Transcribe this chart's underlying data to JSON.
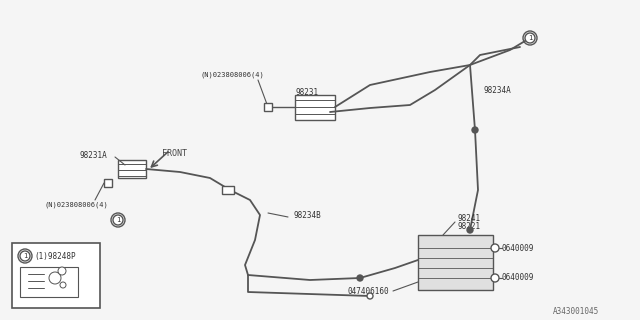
{
  "bg_color": "#f5f5f5",
  "line_color": "#555555",
  "text_color": "#333333",
  "diagram_id": "A343001045",
  "labels": {
    "N023808006_top": "(N)023808006(4)",
    "N023808006_bot": "(N)023808006(4)",
    "part_98231_top": "98231",
    "part_98234A": "98234A",
    "part_98231A": "98231A",
    "part_98234B": "98234B",
    "part_98241": "98241",
    "part_98221": "98221",
    "part_0640009_top": "0640009",
    "part_0640009_bot": "0640009",
    "part_047406160": "047406160",
    "part_98248P": "(1)98248P",
    "front_label": "FRONT"
  }
}
